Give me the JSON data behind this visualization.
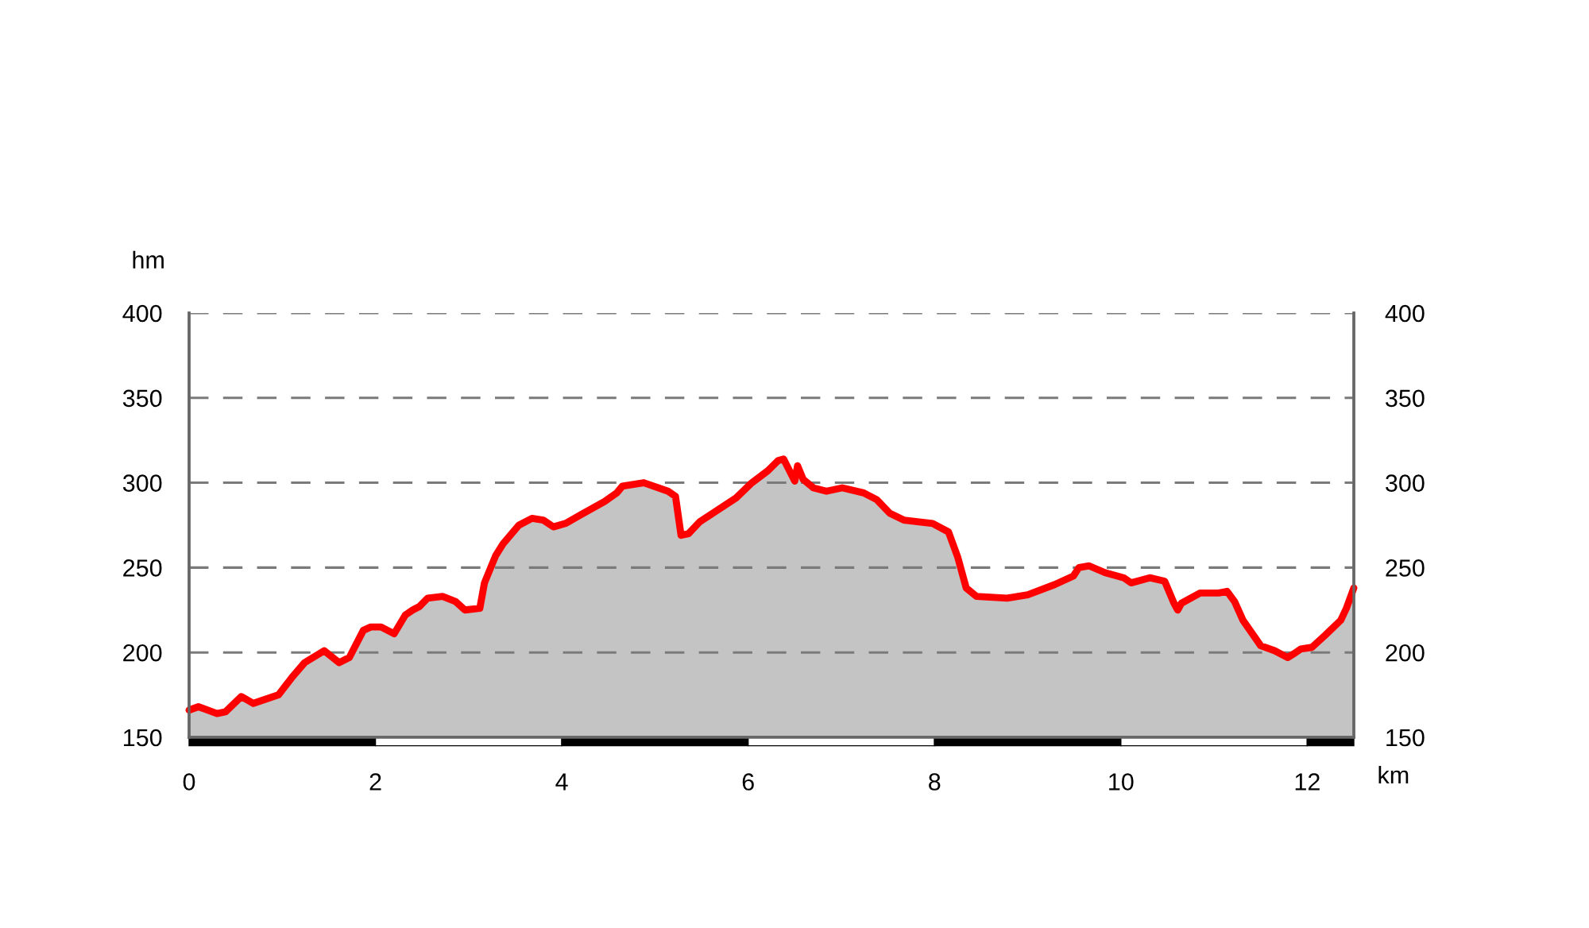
{
  "chart_data": {
    "type": "area",
    "xlabel": "km",
    "ylabel": "hm",
    "x": [
      0,
      0.1,
      0.3,
      0.39,
      0.56,
      0.69,
      0.96,
      1.1,
      1.24,
      1.45,
      1.61,
      1.72,
      1.87,
      1.95,
      2.06,
      2.2,
      2.32,
      2.4,
      2.47,
      2.56,
      2.72,
      2.86,
      2.96,
      3.12,
      3.17,
      3.29,
      3.37,
      3.54,
      3.68,
      3.8,
      3.91,
      4.04,
      4.2,
      4.46,
      4.59,
      4.65,
      4.88,
      5.14,
      5.22,
      5.28,
      5.36,
      5.48,
      5.87,
      6.04,
      6.21,
      6.32,
      6.38,
      6.5,
      6.53,
      6.59,
      6.7,
      6.84,
      7.01,
      7.24,
      7.38,
      7.52,
      7.67,
      7.98,
      8.15,
      8.25,
      8.34,
      8.45,
      8.78,
      9.0,
      9.29,
      9.49,
      9.55,
      9.66,
      9.83,
      10.03,
      10.11,
      10.31,
      10.47,
      10.57,
      10.61,
      10.65,
      10.85,
      11.05,
      11.14,
      11.22,
      11.31,
      11.5,
      11.65,
      11.79,
      11.85,
      11.93,
      12.05,
      12.19,
      12.36,
      12.42,
      12.5
    ],
    "series": [
      {
        "color": "#ff0000",
        "values": [
          166,
          168,
          164,
          165,
          174,
          170,
          175,
          185,
          194,
          201,
          194,
          197,
          213,
          215,
          215,
          211,
          222,
          225,
          227,
          232,
          233,
          230,
          225,
          226,
          241,
          257,
          264,
          275,
          279,
          278,
          274,
          276,
          281,
          289,
          294,
          298,
          300,
          295,
          292,
          269,
          270,
          277,
          291,
          300,
          307,
          313,
          314,
          301,
          310,
          302,
          297,
          295,
          297,
          294,
          290,
          282,
          278,
          276,
          271,
          256,
          238,
          233,
          232,
          234,
          240,
          245,
          250,
          251,
          247,
          244,
          241,
          244,
          242,
          229,
          225,
          229,
          235,
          235,
          236,
          230,
          219,
          204,
          201,
          197,
          199,
          202,
          203,
          210,
          219,
          226,
          238
        ]
      }
    ],
    "xlim": [
      0,
      12.5
    ],
    "xticks": [
      0,
      2,
      4,
      6,
      8,
      10,
      12
    ],
    "ylim": [
      150,
      400
    ],
    "yticks": [
      150,
      200,
      250,
      300,
      350,
      400
    ],
    "y2lim": [
      150,
      400
    ],
    "y2ticks": [
      150,
      200,
      250,
      300,
      350,
      400
    ],
    "grid": "y",
    "line_style": "solid",
    "marker": "none"
  }
}
